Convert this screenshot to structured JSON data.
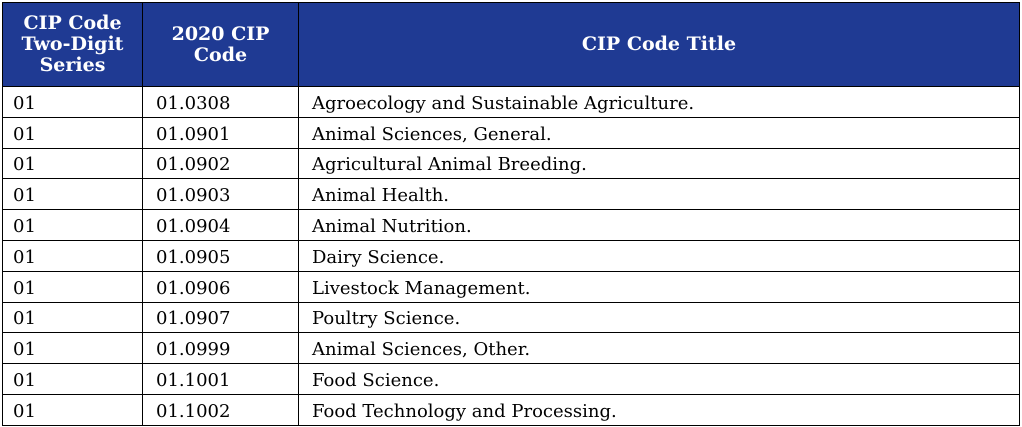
{
  "table": {
    "headers": {
      "series": [
        "CIP Code",
        "Two-Digit",
        "Series"
      ],
      "code": [
        "2020 CIP",
        "Code"
      ],
      "title": [
        "CIP Code Title"
      ]
    },
    "rows": [
      {
        "series": "01",
        "code": "01.0308",
        "title": "Agroecology and Sustainable Agriculture."
      },
      {
        "series": "01",
        "code": "01.0901",
        "title": "Animal Sciences, General."
      },
      {
        "series": "01",
        "code": "01.0902",
        "title": "Agricultural Animal Breeding."
      },
      {
        "series": "01",
        "code": "01.0903",
        "title": "Animal Health."
      },
      {
        "series": "01",
        "code": "01.0904",
        "title": "Animal Nutrition."
      },
      {
        "series": "01",
        "code": "01.0905",
        "title": "Dairy Science."
      },
      {
        "series": "01",
        "code": "01.0906",
        "title": "Livestock Management."
      },
      {
        "series": "01",
        "code": "01.0907",
        "title": "Poultry Science."
      },
      {
        "series": "01",
        "code": "01.0999",
        "title": "Animal Sciences, Other."
      },
      {
        "series": "01",
        "code": "01.1001",
        "title": "Food Science."
      },
      {
        "series": "01",
        "code": "01.1002",
        "title": "Food Technology and Processing."
      }
    ]
  },
  "colors": {
    "header_background": "#1f3a93",
    "header_text": "#ffffff",
    "border": "#000000"
  }
}
